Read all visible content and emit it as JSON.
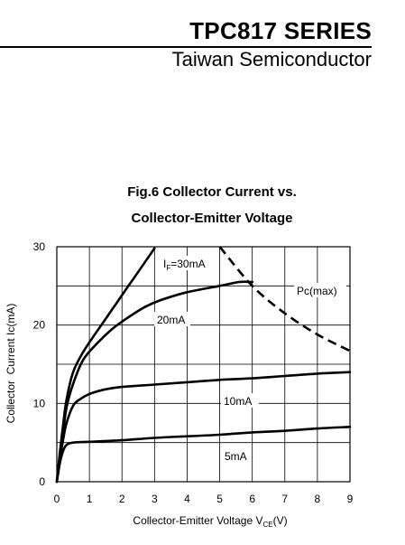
{
  "header": {
    "series": "TPC817 SERIES",
    "company": "Taiwan Semiconductor"
  },
  "chart_data": {
    "type": "line",
    "title_lines": [
      "Fig.6 Collector Current vs.",
      "Collector-Emitter Voltage"
    ],
    "xlabel": {
      "main": "Collector-Emitter Voltage V",
      "sub": "CE",
      "suffix": "(V)"
    },
    "ylabel": "Collector  Current Ic(mA)",
    "xlim": [
      0,
      9
    ],
    "ylim": [
      0,
      30
    ],
    "x_ticks": [
      0,
      1,
      2,
      3,
      4,
      5,
      6,
      7,
      8,
      9
    ],
    "y_ticks": [
      0,
      10,
      20,
      30
    ],
    "grid": true,
    "series": [
      {
        "name": "IF=30mA",
        "style": "solid",
        "x": [
          0,
          0.1,
          0.2,
          0.3,
          0.5,
          0.8,
          1.2,
          1.7,
          2.2,
          2.7,
          3.0
        ],
        "y": [
          0,
          4,
          7.5,
          10.5,
          14,
          16.5,
          19,
          22,
          25,
          28,
          29.8
        ]
      },
      {
        "name": "20mA",
        "style": "solid",
        "x": [
          0,
          0.1,
          0.2,
          0.3,
          0.5,
          0.8,
          1.2,
          1.7,
          2.2,
          2.7,
          3.2,
          4.0,
          5.0,
          5.6,
          6.0
        ],
        "y": [
          0,
          3.5,
          6.5,
          9.5,
          12.5,
          15.5,
          17.5,
          19.5,
          21,
          22.3,
          23.2,
          24.2,
          25,
          25.5,
          25.5
        ]
      },
      {
        "name": "10mA",
        "style": "solid",
        "x": [
          0,
          0.1,
          0.2,
          0.3,
          0.5,
          0.7,
          1.0,
          1.5,
          2.0,
          3.0,
          4.0,
          5.0,
          6.0,
          7.0,
          8.0,
          9.0
        ],
        "y": [
          0,
          3,
          5.5,
          7.5,
          9.7,
          10.5,
          11.2,
          11.8,
          12.1,
          12.4,
          12.7,
          13,
          13.2,
          13.5,
          13.8,
          14
        ]
      },
      {
        "name": "5mA",
        "style": "solid",
        "x": [
          0,
          0.1,
          0.2,
          0.3,
          0.5,
          1,
          2,
          3,
          4,
          5,
          6,
          7,
          8,
          9
        ],
        "y": [
          0,
          2.5,
          4,
          4.7,
          5,
          5.1,
          5.3,
          5.6,
          5.8,
          6,
          6.3,
          6.5,
          6.8,
          7
        ]
      },
      {
        "name": "Pc(max)",
        "style": "dashed",
        "x": [
          5,
          6,
          7,
          8,
          9
        ],
        "y": [
          30,
          25,
          21.5,
          18.8,
          16.7
        ]
      }
    ],
    "annotations": {
      "if30": {
        "main": "I",
        "sub": "F",
        "rest": "=30mA"
      },
      "ma20": "20mA",
      "ma10": "10mA",
      "ma5": "5mA",
      "pcmax": "Pc(max)"
    }
  }
}
